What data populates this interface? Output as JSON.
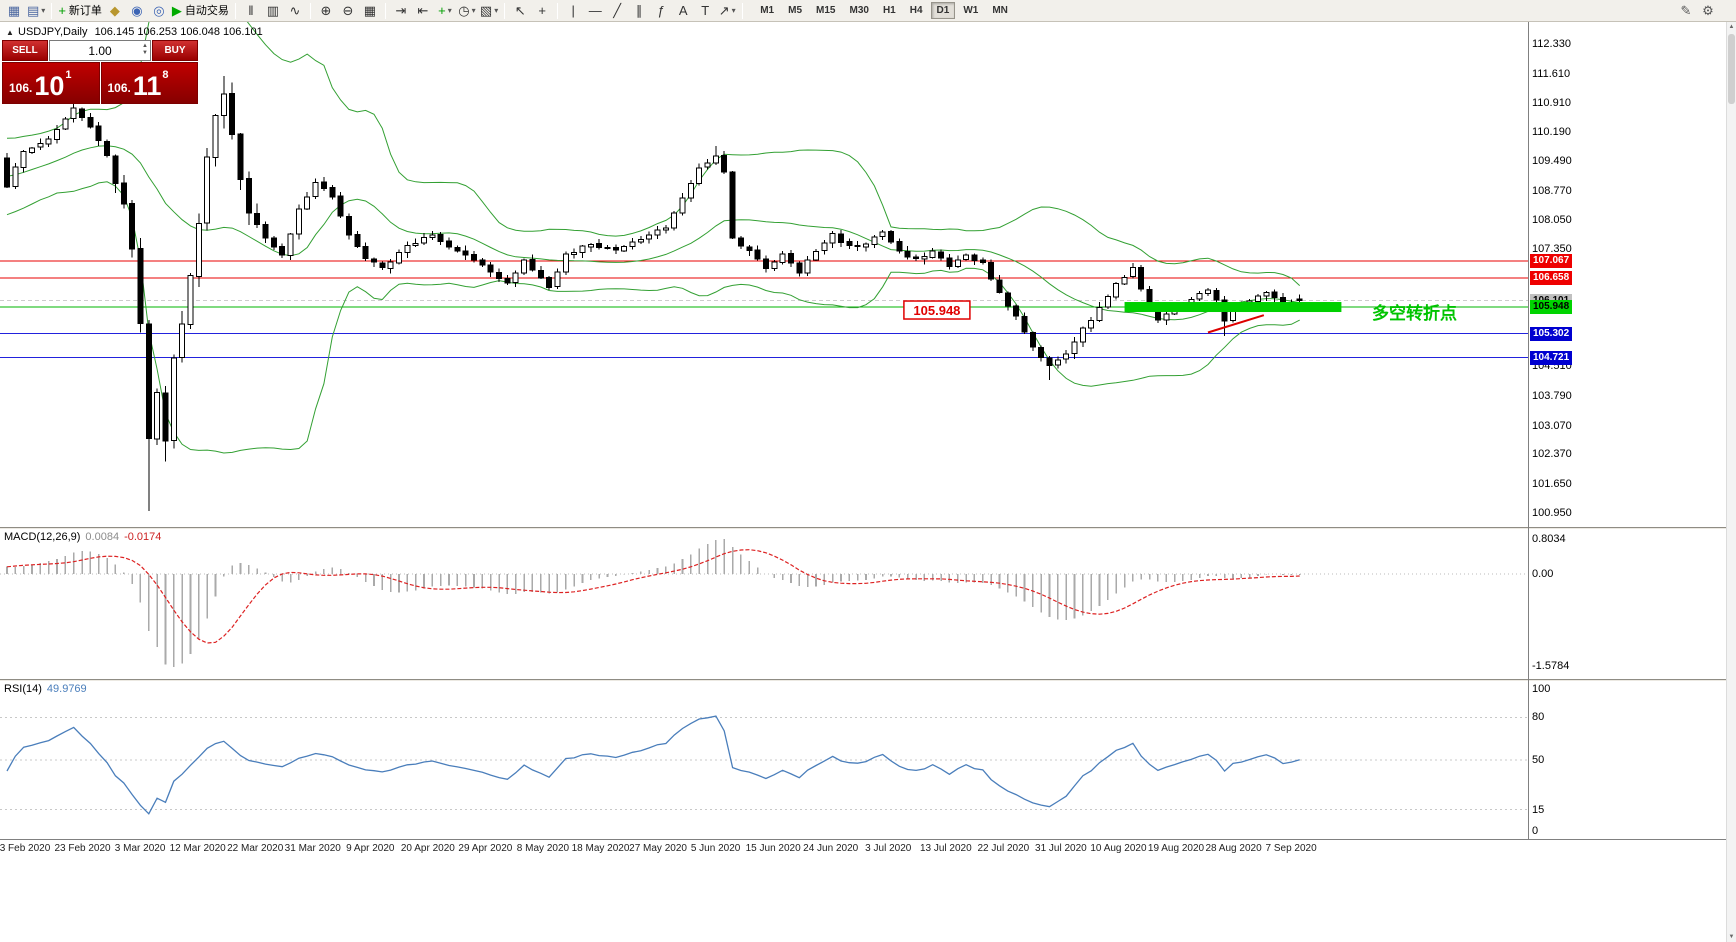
{
  "colors": {
    "hline_red": "#e80000",
    "hline_green": "#00b400",
    "hline_blue": "#2222dd",
    "highlight_green": "#00d000",
    "trend_red": "#dd0000",
    "bollinger": "#33a033",
    "candle_border": "#000000",
    "candle_up": "#ffffff",
    "candle_down": "#000000",
    "macd_hist": "#aaaaaa",
    "macd_signal": "#dd2222",
    "rsi_line": "#4a7ebb",
    "price_box_red": "#e00000"
  },
  "glyphs": {
    "collapse": "▲",
    "scroll_up": "▲",
    "scroll_down": "▼",
    "spin_up": "▲",
    "spin_down": "▼"
  },
  "toolbar": {
    "items": [
      {
        "name": "new-chart-icon",
        "glyph": "▦",
        "color": "#4a66a0"
      },
      {
        "name": "profiles-icon",
        "glyph": "▤",
        "color": "#4a66a0",
        "dropdown": true
      },
      {
        "type": "sep"
      },
      {
        "name": "new-order-button",
        "glyph": "+",
        "color": "#00a000",
        "label": "新订单"
      },
      {
        "name": "metaeditor-icon",
        "glyph": "◆",
        "color": "#b8962e"
      },
      {
        "name": "navigator-icon",
        "glyph": "◉",
        "color": "#3c64b4"
      },
      {
        "name": "terminal-icon",
        "glyph": "◎",
        "color": "#3c64b4"
      },
      {
        "name": "autotrading-button",
        "glyph": "▶",
        "color": "#00aa00",
        "label": "自动交易"
      },
      {
        "type": "sep"
      },
      {
        "name": "bar-chart-icon",
        "glyph": "‖",
        "color": "#333333"
      },
      {
        "name": "candlestick-chart-icon",
        "glyph": "▥",
        "color": "#333333"
      },
      {
        "name": "line-chart-icon",
        "glyph": "∿",
        "color": "#333333"
      },
      {
        "type": "sep"
      },
      {
        "name": "zoom-in-icon",
        "glyph": "⊕",
        "color": "#333333"
      },
      {
        "name": "zoom-out-icon",
        "glyph": "⊖",
        "color": "#333333"
      },
      {
        "name": "tile-windows-icon",
        "glyph": "▦",
        "color": "#333333"
      },
      {
        "type": "sep"
      },
      {
        "name": "auto-scroll-icon",
        "glyph": "⇥",
        "color": "#333333"
      },
      {
        "name": "chart-shift-icon",
        "glyph": "⇤",
        "color": "#333333"
      },
      {
        "name": "indicators-icon",
        "glyph": "+",
        "color": "#00a000",
        "dropdown": true
      },
      {
        "name": "periods-icon",
        "glyph": "◷",
        "color": "#333333",
        "dropdown": true
      },
      {
        "name": "templates-icon",
        "glyph": "▧",
        "color": "#333333",
        "dropdown": true
      },
      {
        "type": "sep"
      },
      {
        "name": "cursor-icon",
        "glyph": "↖",
        "color": "#333333"
      },
      {
        "name": "crosshair-icon",
        "glyph": "+",
        "color": "#333333"
      },
      {
        "type": "sep"
      },
      {
        "name": "vertical-line-icon",
        "glyph": "|",
        "color": "#333333"
      },
      {
        "name": "horizontal-line-icon",
        "glyph": "—",
        "color": "#333333"
      },
      {
        "name": "trendline-icon",
        "glyph": "╱",
        "color": "#333333"
      },
      {
        "name": "channel-icon",
        "glyph": "∥",
        "color": "#333333"
      },
      {
        "name": "fibonacci-icon",
        "glyph": "ƒ",
        "color": "#333333"
      },
      {
        "name": "text-icon",
        "glyph": "A",
        "color": "#333333"
      },
      {
        "name": "text-label-icon",
        "glyph": "T",
        "color": "#333333"
      },
      {
        "name": "arrows-icon",
        "glyph": "↗",
        "color": "#333333",
        "dropdown": true
      },
      {
        "type": "sep"
      }
    ],
    "timeframes": [
      "M1",
      "M5",
      "M15",
      "M30",
      "H1",
      "H4",
      "D1",
      "W1",
      "MN"
    ],
    "active_timeframe": "D1",
    "right_items": [
      {
        "name": "edit-icon",
        "glyph": "✎",
        "color": "#555555"
      },
      {
        "name": "settings-icon",
        "glyph": "⚙",
        "color": "#555555"
      }
    ]
  },
  "chart_header": {
    "symbol": "USDJPY,Daily",
    "ohlc": "106.145 106.253 106.048 106.101"
  },
  "market_panel": {
    "sell_label": "SELL",
    "buy_label": "BUY",
    "volume": "1.00",
    "sell_prefix": "106.",
    "sell_big": "10",
    "sell_sup": "1",
    "buy_prefix": "106.",
    "buy_big": "11",
    "buy_sup": "8"
  },
  "main_axis": {
    "labels": [
      "112.330",
      "111.610",
      "110.910",
      "110.190",
      "109.490",
      "108.770",
      "108.050",
      "107.350",
      "104.510",
      "103.790",
      "103.070",
      "102.370",
      "101.650",
      "100.950"
    ]
  },
  "price_tags": [
    {
      "text": "107.067",
      "type": "red"
    },
    {
      "text": "106.658",
      "type": "red"
    },
    {
      "text": "106.101",
      "type": "bid"
    },
    {
      "text": "105.948",
      "type": "green"
    },
    {
      "text": "105.302",
      "type": "blue"
    },
    {
      "text": "104.721",
      "type": "blue"
    }
  ],
  "macd_panel": {
    "name": "MACD(12,26,9)",
    "value_main": "0.0084",
    "value_signal": "-0.0174",
    "scale_top": "0.8034",
    "scale_zero": "0.00",
    "scale_bottom": "-1.5784"
  },
  "rsi_panel": {
    "name": "RSI(14)",
    "value": "49.9769",
    "scale": [
      "100",
      "80",
      "50",
      "15",
      "0"
    ],
    "levels": [
      80,
      50,
      15
    ]
  },
  "x_axis": {
    "labels": [
      "3 Feb 2020",
      "23 Feb 2020",
      "3 Mar 2020",
      "12 Mar 2020",
      "22 Mar 2020",
      "31 Mar 2020",
      "9 Apr 2020",
      "20 Apr 2020",
      "29 Apr 2020",
      "8 May 2020",
      "18 May 2020",
      "27 May 2020",
      "5 Jun 2020",
      "15 Jun 2020",
      "24 Jun 2020",
      "3 Jul 2020",
      "13 Jul 2020",
      "22 Jul 2020",
      "31 Jul 2020",
      "10 Aug 2020",
      "19 Aug 2020",
      "28 Aug 2020",
      "7 Sep 2020"
    ]
  },
  "annotations": {
    "price_box_text": "105.948",
    "cn_text": "多空转折点"
  },
  "chart_data": {
    "type": "candlestick",
    "symbol": "USDJPY",
    "period": "Daily",
    "visible_bars": 156,
    "ylim": [
      100.95,
      112.33
    ],
    "anchors": [
      [
        0,
        108.9
      ],
      [
        2,
        109.7
      ],
      [
        5,
        110.0
      ],
      [
        8,
        110.8
      ],
      [
        10,
        110.3
      ],
      [
        12,
        109.6
      ],
      [
        14,
        108.4
      ],
      [
        15,
        107.4
      ],
      [
        16,
        105.6
      ],
      [
        17,
        102.8
      ],
      [
        18,
        103.9
      ],
      [
        19,
        102.6
      ],
      [
        20,
        104.8
      ],
      [
        21,
        105.6
      ],
      [
        22,
        106.8
      ],
      [
        23,
        107.9
      ],
      [
        24,
        109.5
      ],
      [
        25,
        110.7
      ],
      [
        26,
        111.2
      ],
      [
        27,
        110.2
      ],
      [
        28,
        109.0
      ],
      [
        29,
        108.3
      ],
      [
        31,
        107.6
      ],
      [
        33,
        107.2
      ],
      [
        35,
        108.3
      ],
      [
        37,
        109.0
      ],
      [
        39,
        108.6
      ],
      [
        41,
        107.7
      ],
      [
        43,
        107.1
      ],
      [
        45,
        106.9
      ],
      [
        48,
        107.4
      ],
      [
        51,
        107.7
      ],
      [
        54,
        107.3
      ],
      [
        57,
        107.0
      ],
      [
        60,
        106.5
      ],
      [
        62,
        107.1
      ],
      [
        65,
        106.4
      ],
      [
        67,
        107.2
      ],
      [
        70,
        107.5
      ],
      [
        73,
        107.3
      ],
      [
        76,
        107.6
      ],
      [
        79,
        107.9
      ],
      [
        81,
        108.6
      ],
      [
        83,
        109.3
      ],
      [
        85,
        109.6
      ],
      [
        86,
        109.2
      ],
      [
        87,
        107.6
      ],
      [
        89,
        107.3
      ],
      [
        91,
        106.9
      ],
      [
        93,
        107.2
      ],
      [
        95,
        106.8
      ],
      [
        97,
        107.3
      ],
      [
        99,
        107.7
      ],
      [
        101,
        107.4
      ],
      [
        103,
        107.5
      ],
      [
        105,
        107.8
      ],
      [
        107,
        107.3
      ],
      [
        109,
        107.1
      ],
      [
        111,
        107.3
      ],
      [
        113,
        106.9
      ],
      [
        115,
        107.2
      ],
      [
        117,
        107.0
      ],
      [
        119,
        106.3
      ],
      [
        121,
        105.7
      ],
      [
        123,
        105.0
      ],
      [
        125,
        104.5
      ],
      [
        127,
        104.8
      ],
      [
        129,
        105.4
      ],
      [
        131,
        105.9
      ],
      [
        133,
        106.5
      ],
      [
        135,
        106.9
      ],
      [
        136,
        106.4
      ],
      [
        138,
        105.6
      ],
      [
        140,
        105.9
      ],
      [
        142,
        106.1
      ],
      [
        144,
        106.4
      ],
      [
        145,
        106.1
      ],
      [
        146,
        105.6
      ],
      [
        147,
        105.9
      ],
      [
        149,
        106.1
      ],
      [
        151,
        106.3
      ],
      [
        153,
        106.0
      ],
      [
        155,
        106.101
      ]
    ],
    "wick_overrides": {
      "17": 101.0,
      "19": 102.2,
      "125": 104.18,
      "146": 105.25
    },
    "high_overrides": {
      "8": 111.1,
      "26": 111.55,
      "85": 109.85,
      "135": 107.02
    },
    "last_candle": {
      "o": 106.145,
      "h": 106.253,
      "l": 106.048,
      "c": 106.101
    },
    "indicators": [
      {
        "type": "BollingerBands",
        "period": 20,
        "deviation": 2
      },
      {
        "type": "MACD",
        "fast": 12,
        "slow": 26,
        "signal": 9,
        "current_main": 0.0084,
        "current_signal": -0.0174
      },
      {
        "type": "RSI",
        "period": 14,
        "current": 49.9769
      }
    ],
    "hlines": [
      {
        "price": 107.067,
        "color": "red"
      },
      {
        "price": 106.658,
        "color": "red"
      },
      {
        "price": 105.948,
        "color": "green"
      },
      {
        "price": 105.302,
        "color": "blue"
      },
      {
        "price": 104.721,
        "color": "blue"
      }
    ],
    "green_zone": {
      "from_bar": 134,
      "to_bar": 160,
      "price": 105.948,
      "thickness": 10
    },
    "red_trendline": {
      "from_bar": 144,
      "from_price": 105.33,
      "to_bar": 150.7,
      "to_price": 105.75
    },
    "price_box": {
      "center_bar": 111.5,
      "price": 105.948
    }
  }
}
